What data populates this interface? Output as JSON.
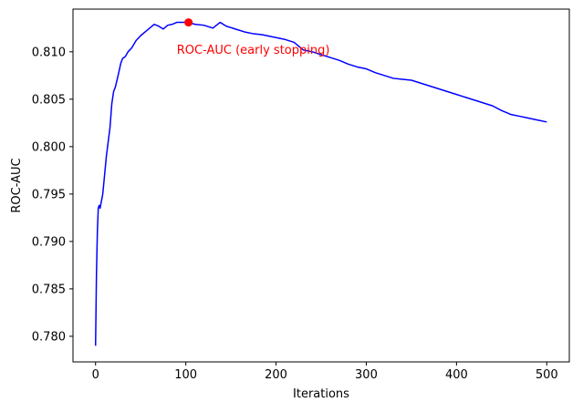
{
  "chart_data": {
    "type": "line",
    "xlabel": "Iterations",
    "ylabel": "ROC-AUC",
    "xlim": [
      -25,
      525
    ],
    "ylim": [
      0.7773,
      0.8145
    ],
    "xticks": [
      0,
      100,
      200,
      300,
      400,
      500
    ],
    "yticks": [
      0.78,
      0.785,
      0.79,
      0.795,
      0.8,
      0.805,
      0.81
    ],
    "grid": false,
    "series": [
      {
        "color": "#0000ff",
        "x": [
          0,
          1,
          2,
          3,
          4,
          5,
          6,
          7,
          8,
          9,
          10,
          12,
          14,
          16,
          18,
          20,
          22,
          25,
          28,
          30,
          33,
          36,
          40,
          45,
          50,
          55,
          60,
          65,
          70,
          75,
          80,
          85,
          90,
          95,
          100,
          103,
          110,
          120,
          130,
          138,
          145,
          155,
          165,
          175,
          185,
          200,
          210,
          220,
          230,
          240,
          250,
          260,
          270,
          280,
          290,
          300,
          310,
          320,
          330,
          340,
          350,
          360,
          370,
          380,
          390,
          400,
          410,
          420,
          430,
          440,
          450,
          460,
          470,
          480,
          490,
          500
        ],
        "y": [
          0.779,
          0.7865,
          0.791,
          0.7935,
          0.7938,
          0.7935,
          0.794,
          0.7945,
          0.795,
          0.796,
          0.797,
          0.799,
          0.8005,
          0.802,
          0.8045,
          0.8058,
          0.8063,
          0.8075,
          0.8088,
          0.8093,
          0.8095,
          0.81,
          0.8104,
          0.8112,
          0.8117,
          0.8121,
          0.8125,
          0.8129,
          0.8127,
          0.8124,
          0.8128,
          0.8129,
          0.8131,
          0.8131,
          0.8131,
          0.8131,
          0.8129,
          0.8128,
          0.8125,
          0.8131,
          0.8127,
          0.8124,
          0.8121,
          0.8119,
          0.8118,
          0.8115,
          0.8113,
          0.811,
          0.8102,
          0.81,
          0.8097,
          0.8094,
          0.8091,
          0.8087,
          0.8084,
          0.8082,
          0.8078,
          0.8075,
          0.8072,
          0.8071,
          0.807,
          0.8067,
          0.8064,
          0.8061,
          0.8058,
          0.8055,
          0.8052,
          0.8049,
          0.8046,
          0.8043,
          0.8038,
          0.8034,
          0.8032,
          0.803,
          0.8028,
          0.8026
        ]
      }
    ],
    "marker": {
      "x": 103,
      "y": 0.8131,
      "color": "#ff0000"
    },
    "annotation": {
      "text": "ROC-AUC (early stopping)",
      "x": 90,
      "y": 0.8098,
      "color": "#ff0000"
    }
  }
}
